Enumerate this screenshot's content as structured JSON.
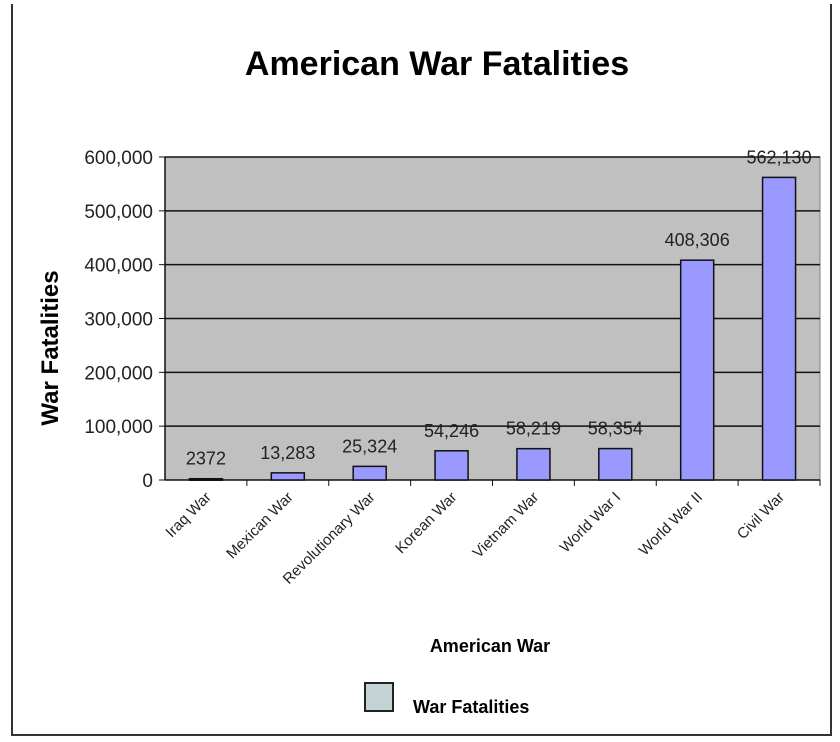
{
  "chart_data": {
    "type": "bar",
    "title": "American War Fatalities",
    "xlabel": "American War",
    "ylabel": "War Fatalities",
    "categories": [
      "Iraq War",
      "Mexican War",
      "Revolutionary War",
      "Korean War",
      "Vietnam War",
      "World War I",
      "World War II",
      "Civil War"
    ],
    "series": [
      {
        "name": "War Fatalities",
        "values": [
          2372,
          13283,
          25324,
          54246,
          58219,
          58354,
          408306,
          562130
        ]
      }
    ],
    "data_labels": [
      "2372",
      "13,283",
      "25,324",
      "54,246",
      "58,219",
      "58,354",
      "408,306",
      "562,130"
    ],
    "ylim": [
      0,
      600000
    ],
    "yticks": [
      "0",
      "100,000",
      "200,000",
      "300,000",
      "400,000",
      "500,000",
      "600,000"
    ],
    "grid": true,
    "legend": "bottom",
    "colors": {
      "bar": "#9999ff",
      "plot_bg": "#c0c0c0",
      "legend_swatch": "#c4d4d6"
    }
  }
}
